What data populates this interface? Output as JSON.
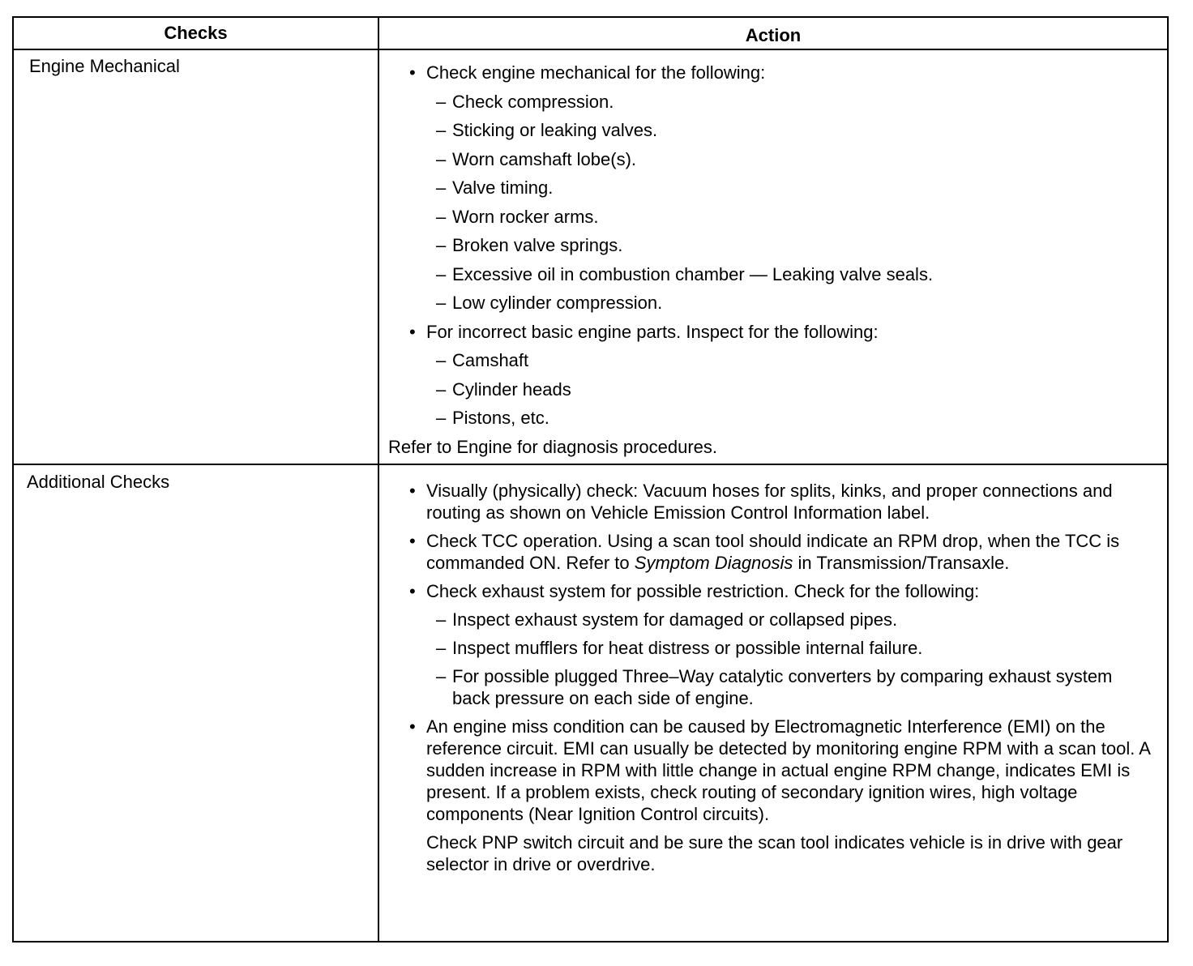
{
  "headers": {
    "checks": "Checks",
    "action": "Action"
  },
  "rows": [
    {
      "check": "Engine Mechanical",
      "b1": "Check engine mechanical for the following:",
      "b1_items": [
        "Check compression.",
        "Sticking or leaking valves.",
        "Worn camshaft lobe(s).",
        "Valve timing.",
        "Worn rocker arms.",
        "Broken valve springs.",
        "Excessive oil in combustion chamber — Leaking valve seals.",
        "Low cylinder compression."
      ],
      "b2": "For incorrect basic engine parts. Inspect for the following:",
      "b2_items": [
        "Camshaft",
        "Cylinder heads",
        "Pistons, etc."
      ],
      "note": "Refer to Engine for diagnosis procedures."
    },
    {
      "check": "Additional Checks",
      "b1": "Visually (physically) check: Vacuum hoses for splits, kinks, and proper connections and routing as shown on Vehicle Emission Control Information label.",
      "b2_pre": "Check TCC operation. Using a scan tool should indicate an RPM drop, when the TCC is commanded ON. Refer to ",
      "b2_em": "Symptom Diagnosis",
      "b2_post": " in Transmission/Transaxle.",
      "b3": "Check exhaust system for possible restriction. Check for the following:",
      "b3_items": [
        "Inspect exhaust system for damaged or collapsed pipes.",
        "Inspect mufflers for heat distress or possible internal failure.",
        "For possible plugged Three–Way catalytic converters by comparing exhaust system back pressure on each side of engine."
      ],
      "b4": "An engine miss condition can be caused by Electromagnetic Interference (EMI) on the reference circuit. EMI can usually be detected by monitoring engine RPM with a scan tool. A sudden increase in RPM with little change in actual engine RPM change, indicates EMI is present. If a problem exists, check routing of secondary ignition wires, high voltage components (Near Ignition Control circuits).",
      "p": "Check PNP switch circuit and be sure the scan tool indicates vehicle is in drive with gear selector in drive or overdrive."
    }
  ]
}
